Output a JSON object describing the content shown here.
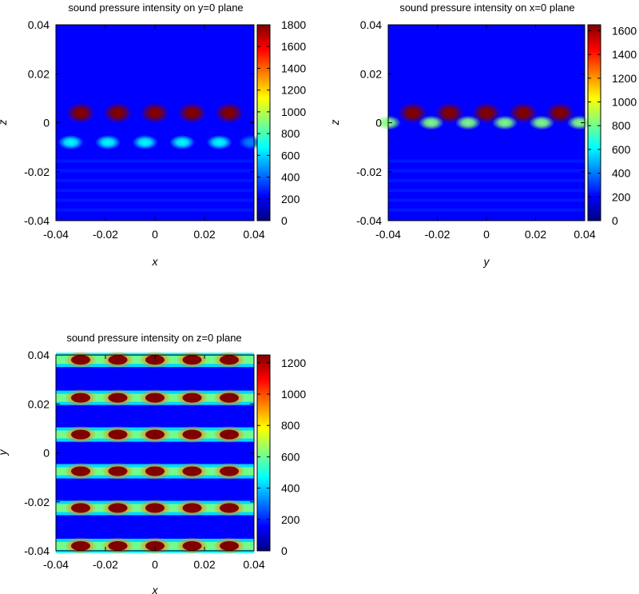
{
  "colormap": [
    "#000080",
    "#0000ff",
    "#0080ff",
    "#00ffff",
    "#80ff80",
    "#ffff00",
    "#ff8000",
    "#ff0000",
    "#800000"
  ],
  "chart_data": [
    {
      "type": "heatmap",
      "title": "sound pressure intensity on y=0 plane",
      "xlabel": "x",
      "ylabel": "z",
      "xlim": [
        -0.04,
        0.04
      ],
      "ylim": [
        -0.04,
        0.04
      ],
      "xticks": [
        "-0.04",
        "-0.02",
        "0",
        "0.02",
        "0.04"
      ],
      "yticks": [
        "-0.04",
        "-0.02",
        "0",
        "0.02",
        "0.04"
      ],
      "colorbar_range": [
        0,
        1800
      ],
      "colorbar_ticks": [
        "0",
        "200",
        "400",
        "600",
        "800",
        "1000",
        "1200",
        "1400",
        "1600",
        "1800"
      ],
      "colorbar_values": [
        0,
        200,
        400,
        600,
        800,
        1000,
        1200,
        1400,
        1600,
        1800
      ],
      "background_value": 150,
      "hotspots": [
        {
          "x": -0.03,
          "y": 0.004,
          "value": 1800
        },
        {
          "x": -0.015,
          "y": 0.004,
          "value": 1800
        },
        {
          "x": 0.0,
          "y": 0.004,
          "value": 1800
        },
        {
          "x": 0.015,
          "y": 0.004,
          "value": 1800
        },
        {
          "x": 0.03,
          "y": 0.004,
          "value": 1800
        },
        {
          "x": -0.034,
          "y": -0.008,
          "value": 600
        },
        {
          "x": -0.019,
          "y": -0.008,
          "value": 600
        },
        {
          "x": -0.004,
          "y": -0.008,
          "value": 600
        },
        {
          "x": 0.011,
          "y": -0.008,
          "value": 600
        },
        {
          "x": 0.026,
          "y": -0.008,
          "value": 600
        },
        {
          "x": 0.039,
          "y": -0.008,
          "value": 550
        }
      ]
    },
    {
      "type": "heatmap",
      "title": "sound pressure intensity on x=0 plane",
      "xlabel": "y",
      "ylabel": "z",
      "xlim": [
        -0.04,
        0.04
      ],
      "ylim": [
        -0.04,
        0.04
      ],
      "xticks": [
        "-0.04",
        "-0.02",
        "0",
        "0.02",
        "0.04"
      ],
      "yticks": [
        "-0.04",
        "-0.02",
        "0",
        "0.02",
        "0.04"
      ],
      "colorbar_range": [
        0,
        1650
      ],
      "colorbar_ticks": [
        "0",
        "200",
        "400",
        "600",
        "800",
        "1000",
        "1200",
        "1400",
        "1600"
      ],
      "colorbar_values": [
        0,
        200,
        400,
        600,
        800,
        1000,
        1200,
        1400,
        1600
      ],
      "background_value": 150,
      "hotspots": [
        {
          "x": -0.03,
          "y": 0.004,
          "value": 1650
        },
        {
          "x": -0.015,
          "y": 0.004,
          "value": 1650
        },
        {
          "x": 0.0,
          "y": 0.004,
          "value": 1650
        },
        {
          "x": 0.015,
          "y": 0.004,
          "value": 1650
        },
        {
          "x": 0.03,
          "y": 0.004,
          "value": 1650
        },
        {
          "x": -0.04,
          "y": 0.0,
          "value": 900
        },
        {
          "x": -0.0225,
          "y": 0.0,
          "value": 900
        },
        {
          "x": -0.0075,
          "y": 0.0,
          "value": 900
        },
        {
          "x": 0.0075,
          "y": 0.0,
          "value": 900
        },
        {
          "x": 0.0225,
          "y": 0.0,
          "value": 900
        },
        {
          "x": 0.038,
          "y": 0.0,
          "value": 900
        }
      ]
    },
    {
      "type": "heatmap",
      "title": "sound pressure intensity on z=0 plane",
      "xlabel": "x",
      "ylabel": "y",
      "xlim": [
        -0.04,
        0.04
      ],
      "ylim": [
        -0.04,
        0.04
      ],
      "xticks": [
        "-0.04",
        "-0.02",
        "0",
        "0.02",
        "0.04"
      ],
      "yticks": [
        "-0.04",
        "-0.02",
        "0",
        "0.02",
        "0.04"
      ],
      "colorbar_range": [
        0,
        1250
      ],
      "colorbar_ticks": [
        "0",
        "200",
        "400",
        "600",
        "800",
        "1000",
        "1200"
      ],
      "colorbar_values": [
        0,
        200,
        400,
        600,
        800,
        1000,
        1200
      ],
      "background_value": 100,
      "hotspot_rows_y": [
        0.038,
        0.0225,
        0.0075,
        -0.0075,
        -0.0225,
        -0.038
      ],
      "hotspot_cols_x": [
        -0.03,
        -0.015,
        0.0,
        0.015,
        0.03
      ],
      "hotspot_value": 1250,
      "band_value": 600
    }
  ]
}
